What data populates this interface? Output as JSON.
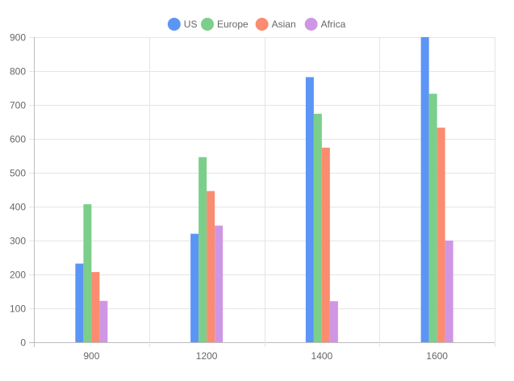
{
  "chart_data": {
    "type": "bar",
    "categories": [
      "900",
      "1200",
      "1400",
      "1600"
    ],
    "series": [
      {
        "name": "US",
        "values": [
          232,
          320,
          782,
          900
        ],
        "color": "#5b95f5"
      },
      {
        "name": "Europe",
        "values": [
          407,
          546,
          674,
          733
        ],
        "color": "#7bcf8a"
      },
      {
        "name": "Asian",
        "values": [
          207,
          446,
          574,
          633
        ],
        "color": "#fb8c70"
      },
      {
        "name": "Africa",
        "values": [
          122,
          344,
          121,
          300
        ],
        "color": "#cf96e3"
      }
    ],
    "ylim": [
      0,
      900
    ],
    "y_ticks": [
      0,
      100,
      200,
      300,
      400,
      500,
      600,
      700,
      800,
      900
    ],
    "legend_position": "top-center",
    "grid": true
  }
}
